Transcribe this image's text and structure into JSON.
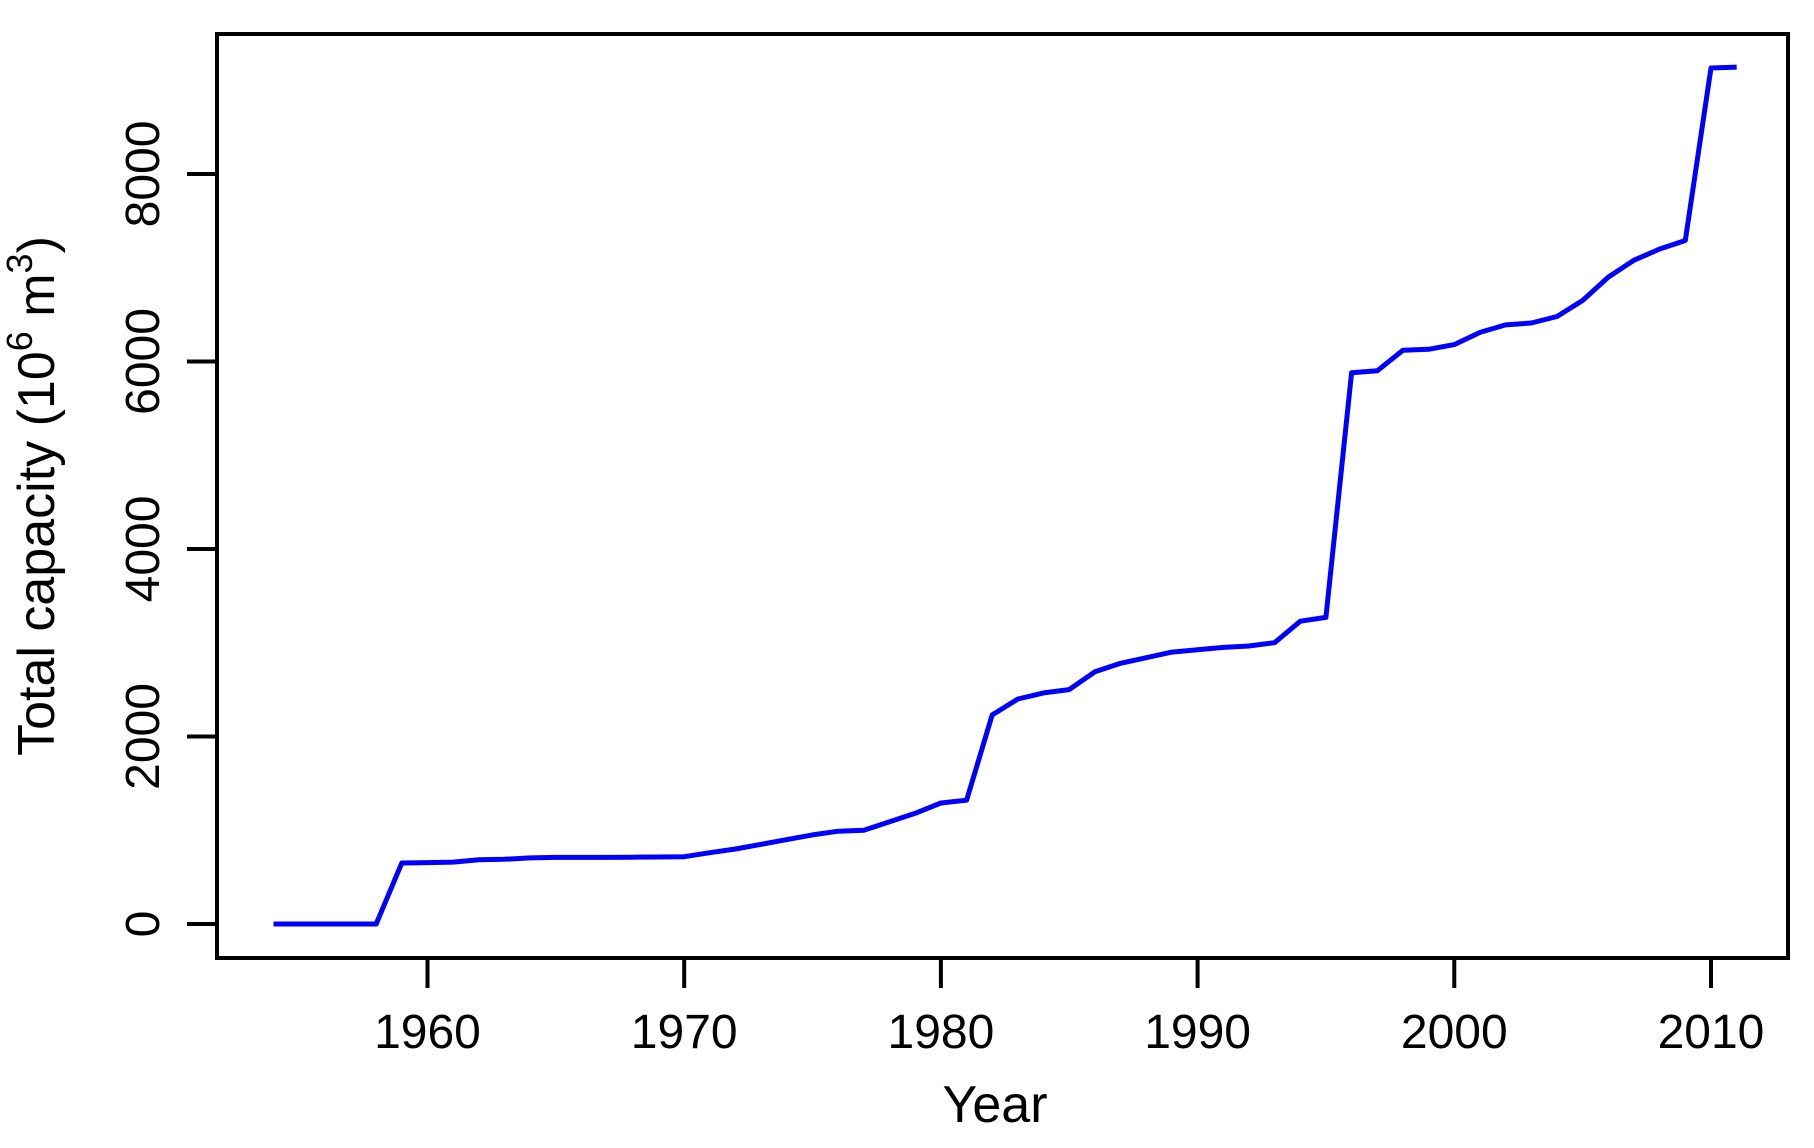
{
  "figure": {
    "background_color": "#ffffff",
    "frame_color": "#000000"
  },
  "chart_data": {
    "type": "line",
    "title": "",
    "xlabel": "Year",
    "ylabel": "Total capacity (10^6 m^3)",
    "ylabel_parts": [
      {
        "text": "Total capacity (10",
        "sup": false
      },
      {
        "text": "6",
        "sup": true
      },
      {
        "text": " m",
        "sup": false
      },
      {
        "text": "3",
        "sup": true
      },
      {
        "text": ")",
        "sup": false
      }
    ],
    "x_ticks": [
      1960,
      1970,
      1980,
      1990,
      2000,
      2010
    ],
    "y_ticks": [
      0,
      2000,
      4000,
      6000,
      8000
    ],
    "xlim": [
      1951.8,
      2013.0
    ],
    "ylim": [
      -363,
      9493
    ],
    "grid": false,
    "legend": null,
    "line_color": "#0000ff",
    "line_width": 5,
    "series": [
      {
        "name": "total-capacity",
        "x": [
          1954,
          1955,
          1956,
          1957,
          1958,
          1959,
          1960,
          1961,
          1962,
          1963,
          1964,
          1965,
          1966,
          1967,
          1968,
          1969,
          1970,
          1971,
          1972,
          1973,
          1974,
          1975,
          1976,
          1977,
          1978,
          1979,
          1980,
          1981,
          1982,
          1983,
          1984,
          1985,
          1986,
          1987,
          1988,
          1989,
          1990,
          1991,
          1992,
          1993,
          1994,
          1995,
          1996,
          1997,
          1998,
          1999,
          2000,
          2001,
          2002,
          2003,
          2004,
          2005,
          2006,
          2007,
          2008,
          2009,
          2010,
          2011
        ],
        "y": [
          0,
          0,
          0,
          0,
          0,
          650,
          655,
          660,
          685,
          690,
          705,
          710,
          710,
          710,
          712,
          714,
          718,
          760,
          800,
          850,
          900,
          950,
          990,
          1000,
          1090,
          1180,
          1290,
          1320,
          2230,
          2400,
          2465,
          2500,
          2690,
          2780,
          2840,
          2900,
          2925,
          2950,
          2965,
          3000,
          3230,
          3270,
          5880,
          5900,
          6120,
          6130,
          6180,
          6310,
          6390,
          6410,
          6480,
          6650,
          6900,
          7080,
          7200,
          7290,
          9130,
          9140
        ]
      }
    ]
  }
}
